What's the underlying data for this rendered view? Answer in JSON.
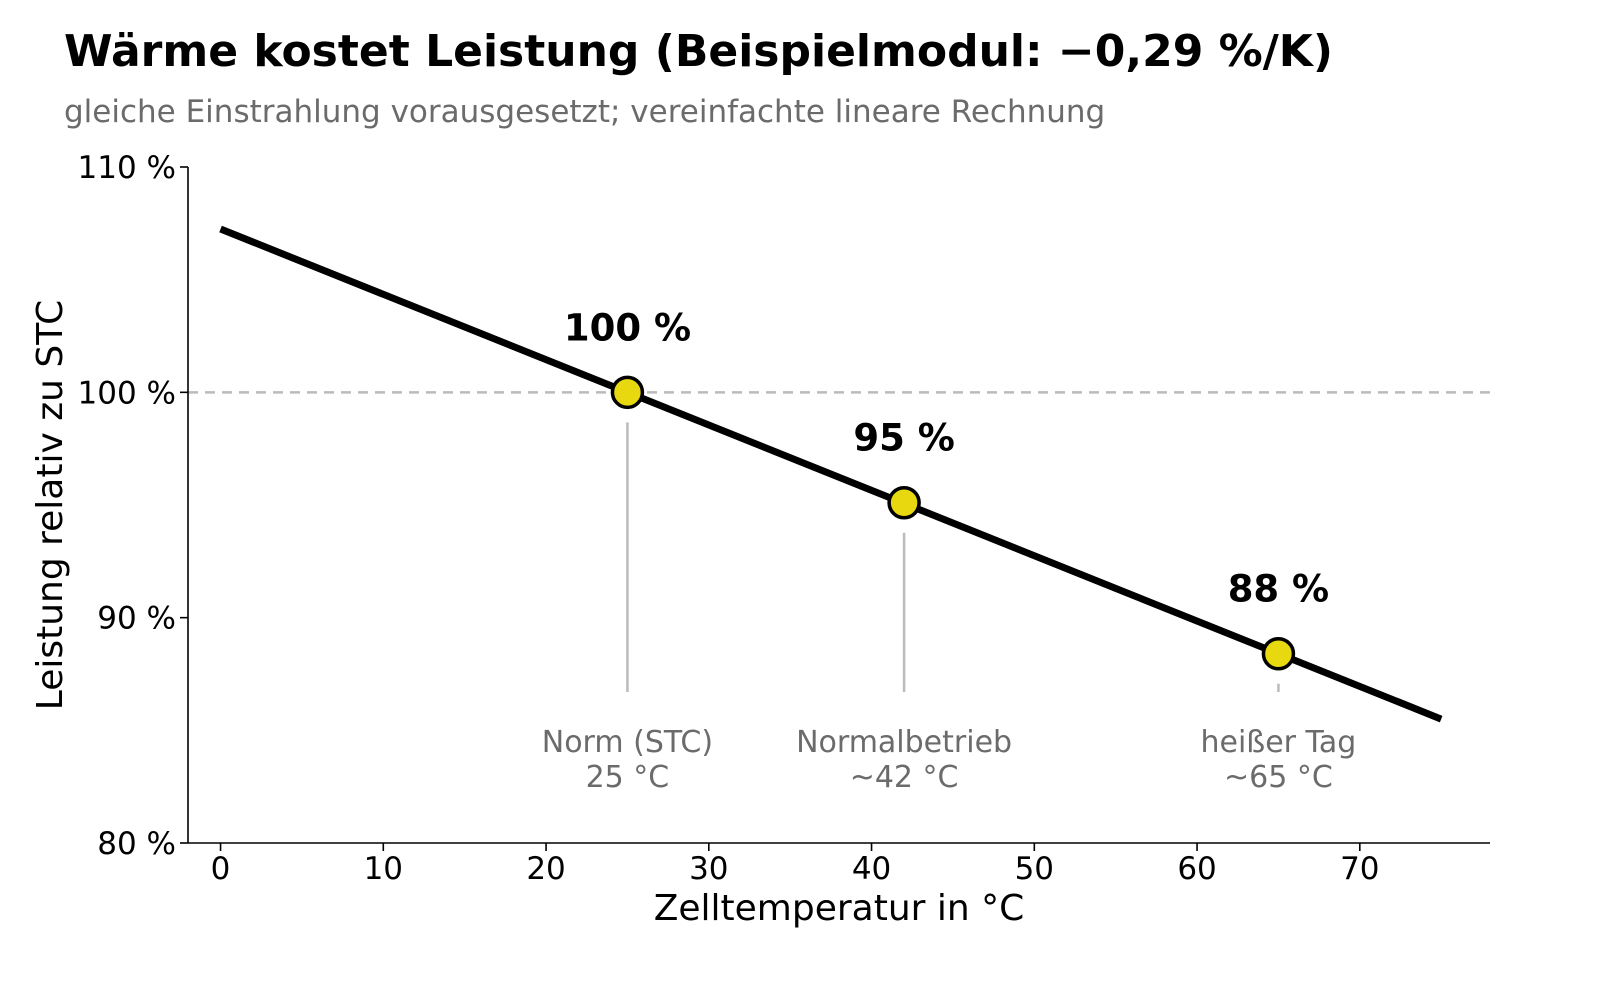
{
  "chart_data": {
    "type": "line",
    "title": "Wärme kostet Leistung (Beispielmodul: −0,29 %/K)",
    "subtitle": "gleiche Einstrahlung vorausgesetzt; vereinfachte lineare Rechnung",
    "xlabel": "Zelltemperatur in °C",
    "ylabel": "Leistung relativ zu STC",
    "xlim": [
      -2,
      78
    ],
    "ylim": [
      80,
      110
    ],
    "x_ticks": [
      0,
      10,
      20,
      30,
      40,
      50,
      60,
      70
    ],
    "x_tick_labels": [
      "0",
      "10",
      "20",
      "30",
      "40",
      "50",
      "60",
      "70"
    ],
    "y_ticks": [
      80,
      90,
      100,
      110
    ],
    "y_tick_labels": [
      "80 %",
      "90 %",
      "100 %",
      "110 %"
    ],
    "reference_line": {
      "y": 100,
      "style": "dashed"
    },
    "series": [
      {
        "x": [
          0,
          75
        ],
        "values": [
          107.25,
          85.5
        ],
        "color": "#000000"
      }
    ],
    "points": [
      {
        "x": 25,
        "y": 100,
        "label": "100 %",
        "annotation": [
          "Norm (STC)",
          "25 °C"
        ]
      },
      {
        "x": 42,
        "y": 95.1,
        "label": "95 %",
        "annotation": [
          "Normalbetrieb",
          "~42 °C"
        ]
      },
      {
        "x": 65,
        "y": 88.4,
        "label": "88 %",
        "annotation": [
          "heißer Tag",
          "~65 °C"
        ]
      }
    ],
    "colors": {
      "line": "#000000",
      "marker": "#e8d80f",
      "annotation": "#6b6b6b",
      "guide": "#bbbbbb"
    },
    "grid": false,
    "legend": "none"
  }
}
